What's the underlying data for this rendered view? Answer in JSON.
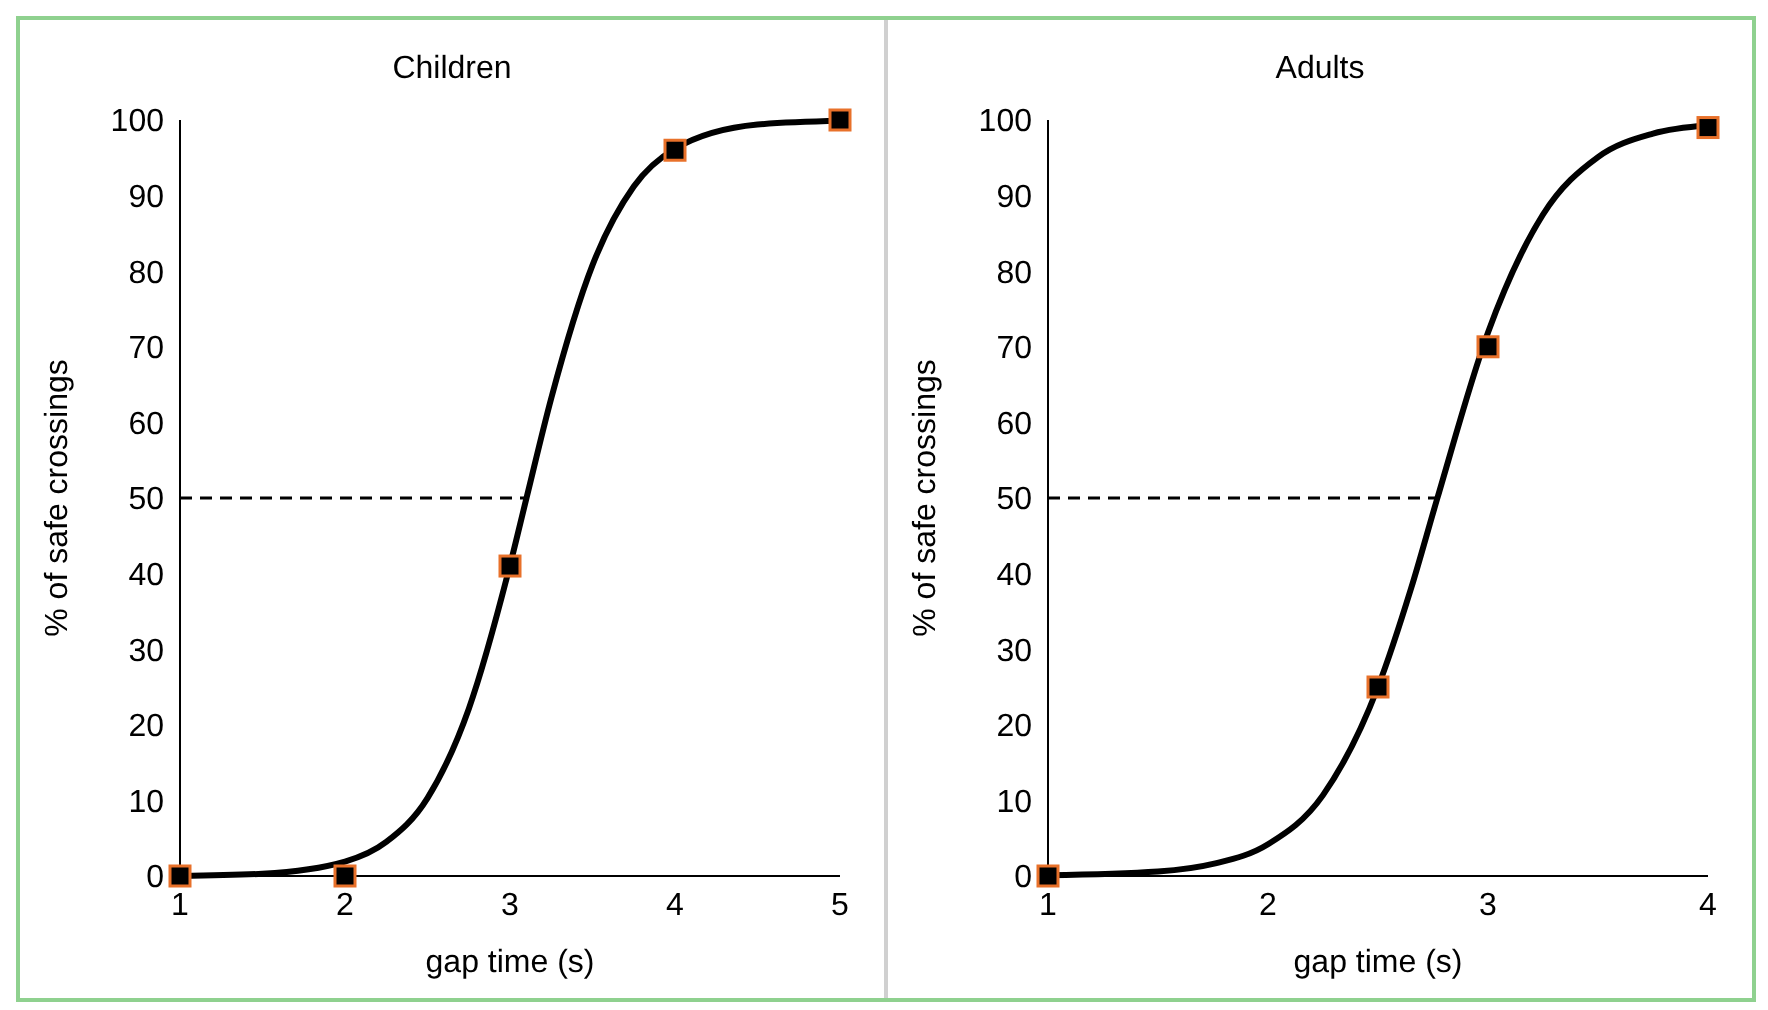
{
  "chart_data": [
    {
      "type": "scatter",
      "title": "Children",
      "xlabel": "gap time (s)",
      "ylabel": "% of safe crossings",
      "xlim": [
        1,
        5
      ],
      "xticks": [
        1,
        2,
        3,
        4,
        5
      ],
      "ylim": [
        0,
        100
      ],
      "yticks": [
        0,
        10,
        20,
        30,
        40,
        50,
        60,
        70,
        80,
        90,
        100
      ],
      "grid": false,
      "legend": false,
      "series": [
        {
          "type": "line",
          "color": "#000000",
          "marker": "none",
          "line_style": "solid",
          "x": [
            1,
            1.5,
            2,
            2.25,
            2.5,
            2.75,
            3,
            3.1,
            3.25,
            3.5,
            3.75,
            4,
            4.5,
            5
          ],
          "values": [
            0,
            0.3,
            1.9,
            4.5,
            10.3,
            22.1,
            41.1,
            50,
            63.2,
            80.8,
            91.2,
            96.2,
            99.4,
            99.9
          ]
        },
        {
          "type": "line",
          "color": "#000000",
          "marker": "none",
          "line_style": "dashed",
          "x": [
            1,
            3.1
          ],
          "values": [
            50,
            50
          ]
        },
        {
          "color": "#000000",
          "marker": "square",
          "x": [
            1,
            2,
            3,
            4,
            5
          ],
          "values": [
            0,
            0,
            41,
            96,
            100
          ]
        }
      ]
    },
    {
      "type": "scatter",
      "title": "Adults",
      "xlabel": "gap time (s)",
      "ylabel": "% of safe crossings",
      "xlim": [
        1,
        4
      ],
      "xticks": [
        1,
        2,
        3,
        4
      ],
      "ylim": [
        0,
        100
      ],
      "yticks": [
        0,
        10,
        20,
        30,
        40,
        50,
        60,
        70,
        80,
        90,
        100
      ],
      "grid": false,
      "legend": false,
      "series": [
        {
          "type": "line",
          "color": "#000000",
          "marker": "none",
          "line_style": "solid",
          "x": [
            1,
            1.5,
            1.75,
            2,
            2.25,
            2.5,
            2.65,
            2.77,
            3,
            3.25,
            3.5,
            3.75,
            4
          ],
          "values": [
            0.1,
            0.6,
            1.6,
            4.2,
            10.7,
            25,
            38,
            50,
            71.9,
            87.5,
            95.1,
            98.2,
            99.3
          ]
        },
        {
          "type": "line",
          "color": "#000000",
          "marker": "none",
          "line_style": "dashed",
          "x": [
            1,
            2.77
          ],
          "values": [
            50,
            50
          ]
        },
        {
          "color": "#000000",
          "marker": "square",
          "x": [
            1,
            2.5,
            3,
            4
          ],
          "values": [
            0,
            25,
            70,
            99
          ]
        }
      ]
    }
  ]
}
